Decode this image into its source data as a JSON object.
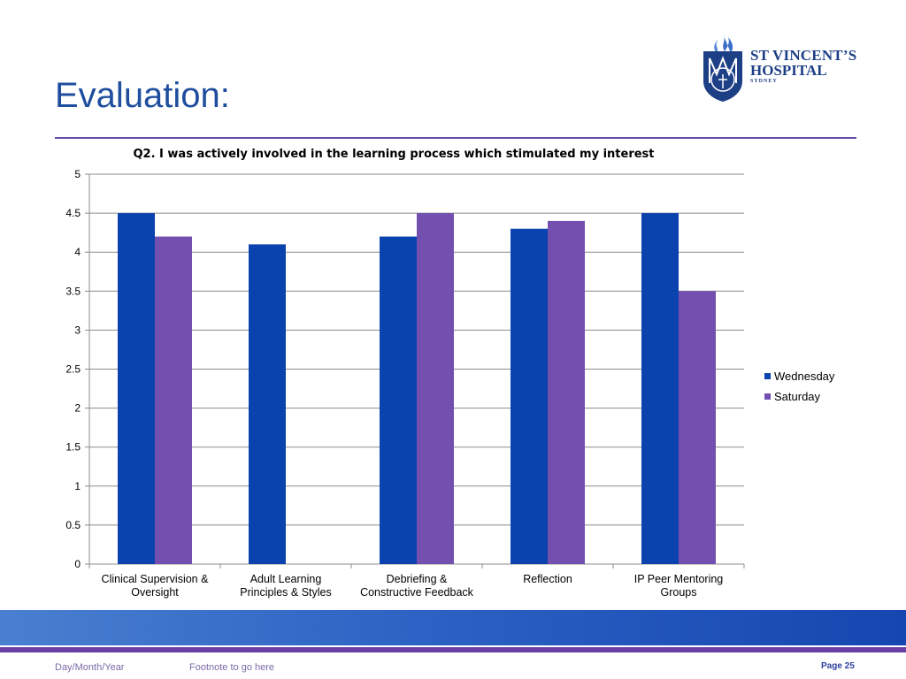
{
  "slide": {
    "title": "Evaluation:"
  },
  "logo": {
    "line1": "ST VINCENT’S",
    "line2": "HOSPITAL",
    "line3": "SYDNEY",
    "colors": {
      "navy": "#1d3f86",
      "flame": "#3a6fc8",
      "purple": "#5b3fa0"
    }
  },
  "footer": {
    "date": "Day/Month/Year",
    "note": "Footnote to go here",
    "page": "Page 25"
  },
  "chart_data": {
    "type": "bar",
    "title": "Q2. I was actively involved in the learning process which stimulated my interest",
    "xlabel": "",
    "ylabel": "",
    "ylim": [
      0,
      5
    ],
    "yticks": [
      "0",
      "0.5",
      "1",
      "1.5",
      "2",
      "2.5",
      "3",
      "3.5",
      "4",
      "4.5",
      "5"
    ],
    "grid": true,
    "legend_position": "right",
    "categories": [
      "Clinical Supervision & Oversight",
      "Adult Learning Principles & Styles",
      "Debriefing & Constructive Feedback",
      "Reflection",
      "IP Peer Mentoring Groups"
    ],
    "category_lines": [
      [
        "Clinical Supervision &",
        "Oversight"
      ],
      [
        "Adult Learning",
        "Principles & Styles"
      ],
      [
        "Debriefing &",
        "Constructive Feedback"
      ],
      [
        "Reflection",
        ""
      ],
      [
        "IP Peer Mentoring",
        "Groups"
      ]
    ],
    "series": [
      {
        "name": "Wednesday",
        "color": "#0a43ad",
        "values": [
          4.5,
          4.1,
          4.2,
          4.3,
          4.5
        ]
      },
      {
        "name": "Saturday",
        "color": "#7350b0",
        "values": [
          4.2,
          null,
          4.5,
          4.4,
          3.5
        ]
      }
    ]
  }
}
